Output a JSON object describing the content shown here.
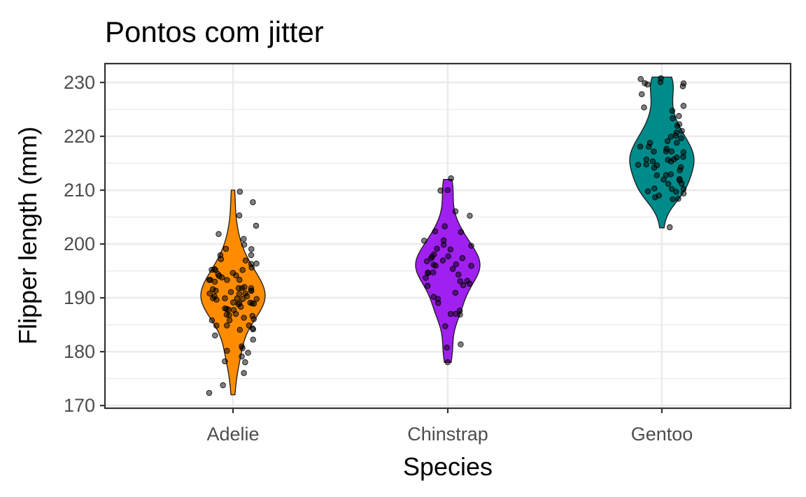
{
  "chart_data": {
    "type": "violin",
    "title": "Pontos com jitter",
    "xlabel": "Species",
    "ylabel": "Flipper length (mm)",
    "categories": [
      "Adelie",
      "Chinstrap",
      "Gentoo"
    ],
    "ylim": [
      169.5,
      233.5
    ],
    "yticks": [
      170,
      180,
      190,
      200,
      210,
      220,
      230
    ],
    "grid": true,
    "legend": "none",
    "colors": {
      "Adelie": "#ff8c00",
      "Chinstrap": "#a020f0",
      "Gentoo": "#008b8b"
    },
    "series": [
      {
        "category": "Adelie",
        "min": 172,
        "max": 210,
        "median": 190,
        "points": [
          172,
          174,
          176,
          178,
          178,
          179,
          180,
          180,
          181,
          181,
          182,
          183,
          184,
          184,
          184,
          185,
          185,
          185,
          186,
          186,
          186,
          186,
          187,
          187,
          187,
          187,
          188,
          188,
          188,
          188,
          188,
          189,
          189,
          189,
          189,
          189,
          189,
          190,
          190,
          190,
          190,
          190,
          190,
          190,
          190,
          191,
          191,
          191,
          191,
          191,
          191,
          191,
          192,
          192,
          192,
          192,
          192,
          193,
          193,
          193,
          193,
          193,
          194,
          194,
          194,
          194,
          195,
          195,
          195,
          195,
          195,
          196,
          196,
          196,
          197,
          197,
          198,
          198,
          199,
          199,
          200,
          201,
          202,
          203,
          205,
          208,
          210
        ]
      },
      {
        "category": "Chinstrap",
        "min": 178,
        "max": 212,
        "median": 196,
        "points": [
          178,
          181,
          181,
          185,
          187,
          187,
          187,
          188,
          189,
          190,
          190,
          191,
          192,
          192,
          193,
          193,
          193,
          194,
          194,
          195,
          195,
          195,
          195,
          196,
          196,
          196,
          196,
          197,
          197,
          197,
          197,
          198,
          198,
          198,
          199,
          199,
          200,
          200,
          201,
          201,
          202,
          202,
          203,
          205,
          206,
          210,
          210,
          212
        ]
      },
      {
        "category": "Gentoo",
        "min": 203,
        "max": 231,
        "median": 216,
        "points": [
          203,
          208,
          208,
          209,
          209,
          209,
          210,
          210,
          210,
          210,
          210,
          211,
          211,
          212,
          212,
          212,
          213,
          213,
          213,
          214,
          214,
          214,
          215,
          215,
          215,
          215,
          215,
          216,
          216,
          216,
          216,
          216,
          217,
          217,
          217,
          217,
          218,
          218,
          218,
          219,
          219,
          219,
          220,
          220,
          220,
          221,
          221,
          222,
          222,
          223,
          224,
          225,
          225,
          226,
          228,
          229,
          230,
          230,
          230,
          230,
          231,
          231
        ]
      }
    ]
  }
}
